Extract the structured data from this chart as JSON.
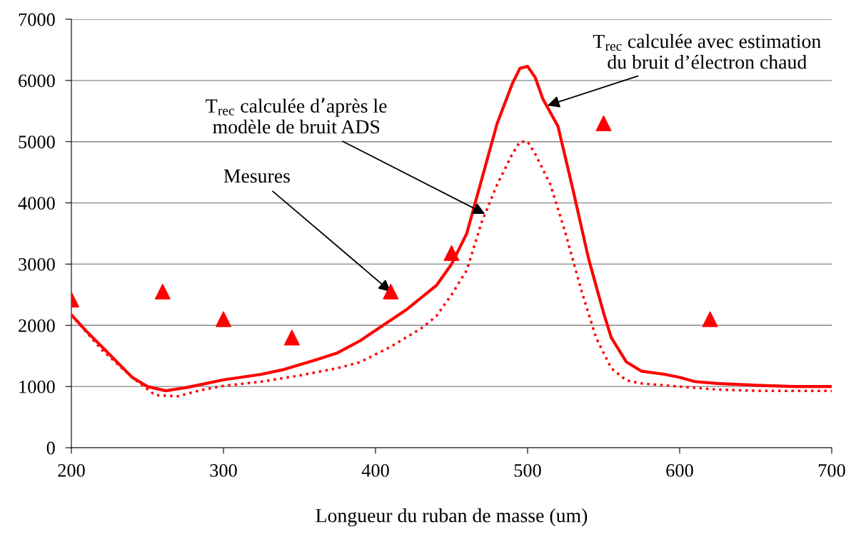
{
  "chart_data": {
    "type": "line",
    "xlabel": "Longueur du ruban de masse (um)",
    "xlim": [
      200,
      700
    ],
    "xticks": [
      200,
      300,
      400,
      500,
      600,
      700
    ],
    "ylim": [
      0,
      7000
    ],
    "yticks": [
      0,
      1000,
      2000,
      3000,
      4000,
      5000,
      6000,
      7000
    ],
    "grid": "y",
    "series": [
      {
        "color": "#ff0000",
        "line_style": "solid",
        "marker": "none",
        "x": [
          200,
          210,
          220,
          230,
          240,
          250,
          262,
          275,
          300,
          325,
          340,
          360,
          375,
          390,
          405,
          420,
          440,
          450,
          460,
          470,
          480,
          490,
          495,
          500,
          505,
          510,
          520,
          530,
          540,
          550,
          555,
          565,
          575,
          590,
          600,
          610,
          625,
          650,
          675,
          700
        ],
        "values": [
          2170,
          1900,
          1650,
          1400,
          1150,
          1000,
          930,
          980,
          1110,
          1200,
          1280,
          1430,
          1550,
          1750,
          2000,
          2250,
          2650,
          3000,
          3500,
          4400,
          5300,
          5950,
          6200,
          6230,
          6050,
          5700,
          5250,
          4200,
          3100,
          2200,
          1800,
          1400,
          1250,
          1200,
          1150,
          1080,
          1050,
          1020,
          1000,
          1000
        ]
      },
      {
        "color": "#ff0000",
        "line_style": "dotted",
        "marker": "none",
        "x": [
          200,
          220,
          240,
          255,
          270,
          285,
          300,
          325,
          350,
          375,
          390,
          410,
          430,
          440,
          450,
          460,
          470,
          480,
          490,
          495,
          500,
          505,
          515,
          525,
          535,
          545,
          555,
          565,
          575,
          600,
          625,
          650,
          700
        ],
        "values": [
          2170,
          1600,
          1150,
          860,
          840,
          940,
          1010,
          1080,
          1180,
          1300,
          1400,
          1650,
          1950,
          2150,
          2500,
          2900,
          3700,
          4300,
          4800,
          5000,
          5000,
          4800,
          4300,
          3500,
          2600,
          1800,
          1300,
          1100,
          1050,
          1000,
          950,
          930,
          930
        ]
      },
      {
        "type": "scatter",
        "color": "#ff0000",
        "marker": "triangle",
        "x": [
          200,
          260,
          300,
          345,
          410,
          450,
          550,
          620
        ],
        "values": [
          2420,
          2550,
          2100,
          1800,
          2550,
          3180,
          5300,
          2100
        ]
      }
    ],
    "annotations": [
      {
        "text": "T$_{rec}$ calculée avec estimation\ndu bruit d’électron chaud",
        "x": 513,
        "y": 5590
      },
      {
        "text": "T$_{rec}$ calculée d’après le\nmodèle de bruit ADS",
        "x": 472,
        "y": 3820
      },
      {
        "text": "Mesures",
        "x": 410,
        "y": 2550
      }
    ]
  }
}
